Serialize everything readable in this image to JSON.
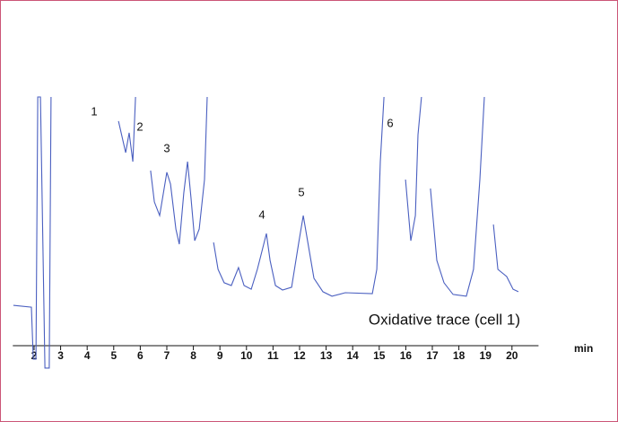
{
  "chart_data": {
    "type": "line",
    "annotations": [
      "1",
      "2",
      "3",
      "4",
      "5",
      "6",
      "Oxidative trace (cell 1)"
    ],
    "x_label": "min",
    "xlim": [
      1.2,
      21
    ],
    "xticks": [
      2,
      3,
      4,
      5,
      6,
      7,
      8,
      9,
      10,
      11,
      12,
      13,
      14,
      15,
      16,
      17,
      18,
      19,
      20
    ],
    "ylim": [
      -10,
      100
    ],
    "grid": false,
    "series": [
      {
        "color": "#4a5fc0",
        "x": [
          1.22,
          1.9,
          1.97,
          2.07,
          2.14,
          2.24,
          2.41,
          2.57,
          2.64,
          4.91,
          5.18,
          5.45,
          5.58,
          5.72,
          5.82,
          6.22,
          6.39,
          6.53,
          6.73,
          7.0,
          7.14,
          7.34,
          7.47,
          7.64,
          7.78,
          7.91,
          8.05,
          8.22,
          8.42,
          8.52,
          8.66,
          8.76,
          8.93,
          9.16,
          9.43,
          9.7,
          9.91,
          10.18,
          10.41,
          10.58,
          10.75,
          10.89,
          11.09,
          11.36,
          11.7,
          11.97,
          12.14,
          12.31,
          12.54,
          12.88,
          13.22,
          13.72,
          14.74,
          14.91,
          15.04,
          15.18,
          15.78,
          15.99,
          16.19,
          16.36,
          16.46,
          16.59,
          16.76,
          16.93,
          17.17,
          17.44,
          17.78,
          18.28,
          18.55,
          18.79,
          18.96,
          19.16,
          19.3,
          19.47,
          19.8,
          20.04,
          20.24
        ],
        "values": [
          16.2,
          15.5,
          -5.4,
          -5.4,
          100,
          100,
          -9,
          -9,
          100,
          null,
          90.3,
          77.6,
          85.6,
          74.0,
          100,
          null,
          70.4,
          57.8,
          52.3,
          69.7,
          65.0,
          46.9,
          40.8,
          61.4,
          74.0,
          59.6,
          42.2,
          46.9,
          66.8,
          100,
          null,
          41.5,
          30.7,
          25.3,
          24.2,
          31.4,
          24.2,
          22.7,
          30.7,
          37.9,
          45.1,
          34.3,
          24.2,
          22.4,
          23.5,
          41.5,
          52.3,
          41.5,
          27.1,
          21.7,
          19.9,
          21.3,
          20.9,
          30.7,
          74.0,
          100,
          null,
          66.8,
          42.2,
          52.3,
          84.8,
          100,
          null,
          63.2,
          34.3,
          25.3,
          20.6,
          19.9,
          30.7,
          66.8,
          100,
          null,
          48.7,
          30.7,
          27.8,
          22.7,
          21.7
        ]
      }
    ]
  }
}
